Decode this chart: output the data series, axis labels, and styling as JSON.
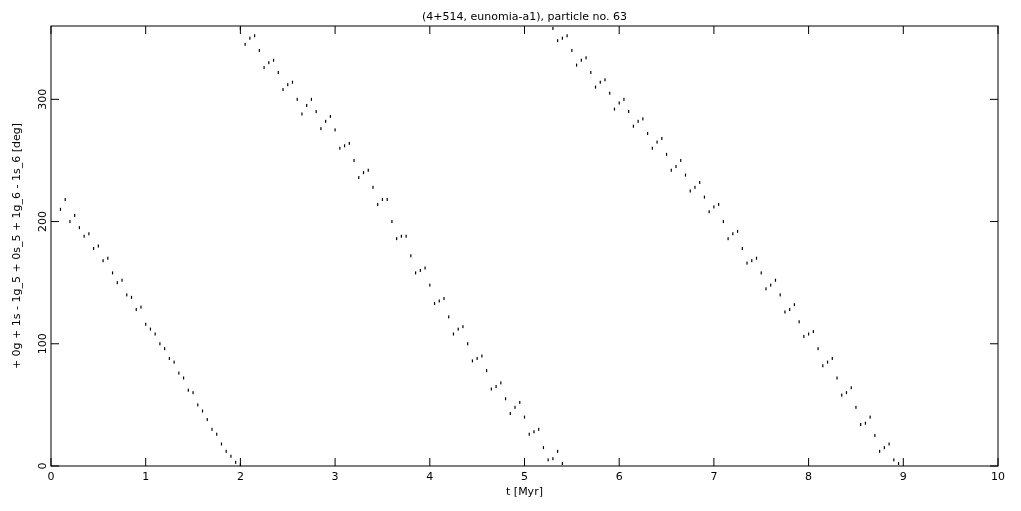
{
  "chart_data": {
    "type": "scatter",
    "title": "(4+514, eunomia-a1), particle no. 63",
    "xlabel": "t [Myr]",
    "ylabel": "+ 0g + 1s - 1g_5 + 0s_5 + 1g_6 - 1s_6 [deg]",
    "xlim": [
      0,
      10
    ],
    "ylim": [
      0,
      360
    ],
    "xticks": [
      0,
      1,
      2,
      3,
      4,
      5,
      6,
      7,
      8,
      9,
      10
    ],
    "yticks": [
      0,
      100,
      200,
      300
    ],
    "series": [
      {
        "color": "#000000",
        "x": [
          0.1,
          0.15,
          0.2,
          0.25,
          0.3,
          0.35,
          0.4,
          0.45,
          0.5,
          0.55,
          0.6,
          0.65,
          0.7,
          0.75,
          0.8,
          0.85,
          0.9,
          0.95,
          1.0,
          1.05,
          1.1,
          1.15,
          1.2,
          1.25,
          1.3,
          1.35,
          1.4,
          1.45,
          1.5,
          1.55,
          1.6,
          1.65,
          1.7,
          1.75,
          1.8,
          1.85,
          1.9,
          1.95,
          2.0,
          2.0,
          2.05,
          2.1,
          2.15,
          2.2,
          2.25,
          2.3,
          2.35,
          2.4,
          2.45,
          2.5,
          2.55,
          2.6,
          2.65,
          2.7,
          2.75,
          2.8,
          2.85,
          2.9,
          2.95,
          3.0,
          3.05,
          3.1,
          3.15,
          3.2,
          3.25,
          3.3,
          3.35,
          3.4,
          3.45,
          3.5,
          3.55,
          3.6,
          3.65,
          3.7,
          3.75,
          3.8,
          3.85,
          3.9,
          3.95,
          4.0,
          4.05,
          4.1,
          4.15,
          4.2,
          4.25,
          4.3,
          4.35,
          4.4,
          4.45,
          4.5,
          4.55,
          4.6,
          4.65,
          4.7,
          4.75,
          4.8,
          4.85,
          4.9,
          4.95,
          5.0,
          5.05,
          5.1,
          5.15,
          5.2,
          5.25,
          5.3,
          5.35,
          5.4,
          5.3,
          5.35,
          5.4,
          5.45,
          5.5,
          5.55,
          5.6,
          5.65,
          5.7,
          5.75,
          5.8,
          5.85,
          5.9,
          5.95,
          6.0,
          6.05,
          6.1,
          6.15,
          6.2,
          6.25,
          6.3,
          6.35,
          6.4,
          6.45,
          6.5,
          6.55,
          6.6,
          6.65,
          6.7,
          6.75,
          6.8,
          6.85,
          6.9,
          6.95,
          7.0,
          7.05,
          7.1,
          7.15,
          7.2,
          7.25,
          7.3,
          7.35,
          7.4,
          7.45,
          7.5,
          7.55,
          7.6,
          7.65,
          7.7,
          7.75,
          7.8,
          7.85,
          7.9,
          7.95,
          8.0,
          8.05,
          8.1,
          8.15,
          8.2,
          8.25,
          8.3,
          8.35,
          8.4,
          8.45,
          8.5,
          8.55,
          8.6,
          8.65,
          8.7,
          8.75,
          8.8,
          8.85,
          8.9,
          8.95
        ],
        "values": [
          210,
          218,
          200,
          205,
          195,
          188,
          190,
          178,
          180,
          168,
          170,
          158,
          150,
          152,
          140,
          138,
          128,
          130,
          116,
          112,
          108,
          100,
          96,
          88,
          85,
          76,
          72,
          62,
          60,
          50,
          45,
          38,
          30,
          26,
          18,
          12,
          8,
          3,
          1,
          358,
          345,
          350,
          352,
          340,
          326,
          330,
          332,
          322,
          308,
          312,
          314,
          300,
          288,
          295,
          300,
          290,
          276,
          282,
          286,
          275,
          260,
          262,
          264,
          250,
          236,
          240,
          242,
          228,
          214,
          218,
          218,
          200,
          186,
          188,
          188,
          172,
          158,
          160,
          162,
          148,
          133,
          135,
          137,
          122,
          108,
          112,
          114,
          100,
          86,
          88,
          90,
          78,
          63,
          65,
          68,
          55,
          43,
          48,
          52,
          40,
          26,
          28,
          30,
          15,
          5,
          6,
          12,
          2,
          358,
          348,
          350,
          352,
          340,
          328,
          332,
          334,
          322,
          310,
          314,
          316,
          305,
          292,
          297,
          300,
          290,
          278,
          282,
          284,
          272,
          260,
          265,
          268,
          255,
          242,
          245,
          250,
          238,
          225,
          228,
          232,
          220,
          208,
          212,
          214,
          200,
          186,
          190,
          192,
          178,
          166,
          168,
          170,
          158,
          145,
          148,
          152,
          140,
          126,
          128,
          132,
          118,
          106,
          108,
          110,
          96,
          82,
          85,
          88,
          72,
          58,
          60,
          64,
          48,
          34,
          35,
          40,
          25,
          12,
          15,
          18,
          5,
          2
        ]
      }
    ]
  }
}
